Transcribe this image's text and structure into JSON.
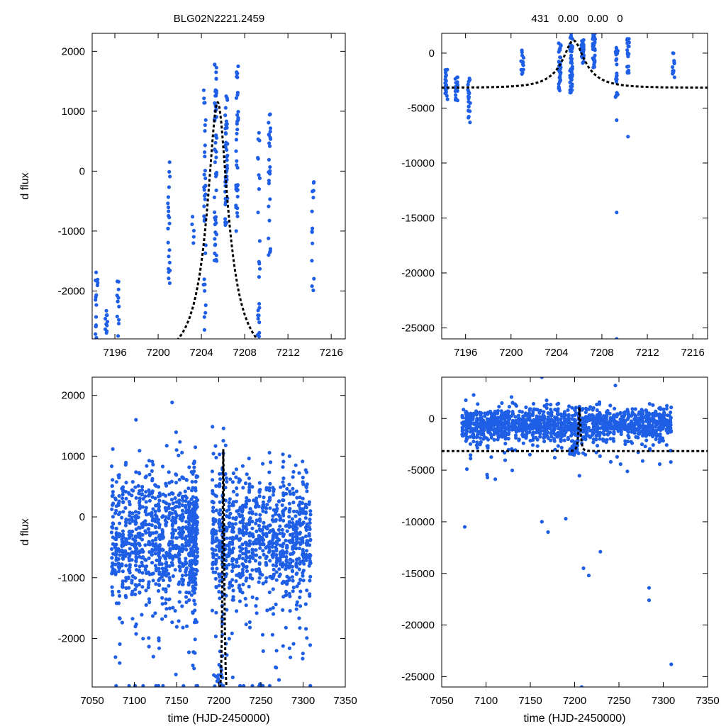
{
  "figure": {
    "title_left": "BLG02N2221.2459",
    "title_right": "431   0.00   0.00   0"
  },
  "chart_data": [
    {
      "type": "scatter",
      "panel": "top-left",
      "title": "BLG02N2221.2459",
      "xlabel": "",
      "ylabel": "d flux",
      "xlim": [
        7193.9,
        7217.3
      ],
      "ylim": [
        -2800,
        2300
      ],
      "xticks": [
        7196,
        7200,
        7204,
        7208,
        7212,
        7216
      ],
      "yticks": [
        -2000,
        -1000,
        0,
        1000,
        2000
      ],
      "point_color": "#1f5fe6",
      "model_color": "#000000",
      "model": {
        "type": "microlensing-peak",
        "t0": 7205.5,
        "peak": 1150,
        "base": -3150,
        "u0": 0.33,
        "tE": 2.8
      },
      "series": [
        {
          "name": "observations",
          "clusters": [
            {
              "t": 7194.3,
              "n": 14,
              "ymin": -2780,
              "ymax": -1690
            },
            {
              "t": 7195.2,
              "n": 10,
              "ymin": -2700,
              "ymax": -2330
            },
            {
              "t": 7196.3,
              "n": 12,
              "ymin": -2750,
              "ymax": -1840
            },
            {
              "t": 7201.0,
              "n": 22,
              "ymin": -1870,
              "ymax": 150
            },
            {
              "t": 7203.2,
              "n": 5,
              "ymin": -1200,
              "ymax": -760
            },
            {
              "t": 7204.3,
              "n": 36,
              "ymin": -2650,
              "ymax": 1350
            },
            {
              "t": 7205.3,
              "n": 52,
              "ymin": -1500,
              "ymax": 1780
            },
            {
              "t": 7206.3,
              "n": 48,
              "ymin": -900,
              "ymax": 1250
            },
            {
              "t": 7207.3,
              "n": 40,
              "ymin": -1000,
              "ymax": 1750
            },
            {
              "t": 7209.3,
              "n": 24,
              "ymin": -2760,
              "ymax": 640
            },
            {
              "t": 7210.3,
              "n": 26,
              "ymin": -1400,
              "ymax": 950
            },
            {
              "t": 7214.3,
              "n": 14,
              "ymin": -1990,
              "ymax": -180
            }
          ]
        }
      ]
    },
    {
      "type": "scatter",
      "panel": "top-right",
      "title": "431   0.00   0.00   0",
      "xlabel": "",
      "ylabel": "",
      "xlim": [
        7193.9,
        7217.3
      ],
      "ylim": [
        -26000,
        1800
      ],
      "xticks": [
        7196,
        7200,
        7204,
        7208,
        7212,
        7216
      ],
      "yticks": [
        -25000,
        -20000,
        -15000,
        -10000,
        -5000,
        0
      ],
      "point_color": "#1f5fe6",
      "model_color": "#000000",
      "model": {
        "type": "microlensing-peak",
        "t0": 7205.5,
        "peak": 1150,
        "base": -3150,
        "u0": 0.33,
        "tE": 2.8
      },
      "series": [
        {
          "name": "observations",
          "clusters": [
            {
              "t": 7194.3,
              "n": 20,
              "ymin": -4200,
              "ymax": -1500
            },
            {
              "t": 7195.2,
              "n": 20,
              "ymin": -4300,
              "ymax": -2200
            },
            {
              "t": 7196.3,
              "n": 20,
              "ymin": -6300,
              "ymax": -2300
            },
            {
              "t": 7201.0,
              "n": 14,
              "ymin": -1900,
              "ymax": 250
            },
            {
              "t": 7204.3,
              "n": 36,
              "ymin": -3400,
              "ymax": 900
            },
            {
              "t": 7205.3,
              "n": 46,
              "ymin": -3600,
              "ymax": 1800
            },
            {
              "t": 7206.3,
              "n": 38,
              "ymin": -900,
              "ymax": 1200
            },
            {
              "t": 7207.3,
              "n": 38,
              "ymin": -1300,
              "ymax": 1800
            },
            {
              "t": 7209.3,
              "n": 24,
              "ymin": -4000,
              "ymax": 500
            },
            {
              "t": 7210.3,
              "n": 20,
              "ymin": -1800,
              "ymax": 1300
            },
            {
              "t": 7214.3,
              "n": 12,
              "ymin": -2200,
              "ymax": 0
            }
          ],
          "outliers": [
            [
              7209.3,
              -26000
            ],
            [
              7209.3,
              -14500
            ],
            [
              7209.3,
              -6100
            ],
            [
              7210.3,
              -7600
            ]
          ]
        }
      ]
    },
    {
      "type": "scatter",
      "panel": "bottom-left",
      "title": "",
      "xlabel": "time (HJD-2450000)",
      "ylabel": "d flux",
      "xlim": [
        7050,
        7350
      ],
      "ylim": [
        -2800,
        2300
      ],
      "xticks": [
        7050,
        7100,
        7150,
        7200,
        7250,
        7300,
        7350
      ],
      "yticks": [
        -2000,
        -1000,
        0,
        1000,
        2000
      ],
      "point_color": "#1f5fe6",
      "model_color": "#000000",
      "model": {
        "type": "microlensing-peak",
        "t0": 7205.5,
        "peak": 1150,
        "base": -3150,
        "u0": 0.33,
        "tE": 2.8
      },
      "series": [
        {
          "name": "observations",
          "range": [
            7072,
            7310
          ],
          "count": 1900,
          "center": -300,
          "spread": 900,
          "gap": [
            7175,
            7190
          ],
          "ymin": -2780,
          "ymax": 1920
        }
      ]
    },
    {
      "type": "scatter",
      "panel": "bottom-right",
      "title": "",
      "xlabel": "time (HJD-2450000)",
      "ylabel": "",
      "xlim": [
        7050,
        7350
      ],
      "ylim": [
        -26000,
        4000
      ],
      "xticks": [
        7050,
        7100,
        7150,
        7200,
        7250,
        7300,
        7350
      ],
      "yticks": [
        -25000,
        -20000,
        -15000,
        -10000,
        -5000,
        0
      ],
      "point_color": "#1f5fe6",
      "model_color": "#000000",
      "model": {
        "type": "microlensing-peak",
        "t0": 7205.5,
        "peak": 1150,
        "base": -3150,
        "u0": 0.33,
        "tE": 2.8
      },
      "series": [
        {
          "name": "observations",
          "range": [
            7072,
            7310
          ],
          "count": 1400,
          "center": -500,
          "spread": 1300,
          "ymin": -26000,
          "ymax": 4000,
          "outliers": [
            [
              7076,
              -10500
            ],
            [
              7163,
              -10000
            ],
            [
              7170,
              -11000
            ],
            [
              7190,
              -9700
            ],
            [
              7210,
              -14500
            ],
            [
              7216,
              -15200
            ],
            [
              7229,
              -12900
            ],
            [
              7284,
              -16400
            ],
            [
              7284,
              -17600
            ],
            [
              7309,
              -23800
            ],
            [
              7208,
              -26000
            ],
            [
              7163,
              4000
            ],
            [
              7246,
              3200
            ]
          ]
        }
      ]
    }
  ]
}
